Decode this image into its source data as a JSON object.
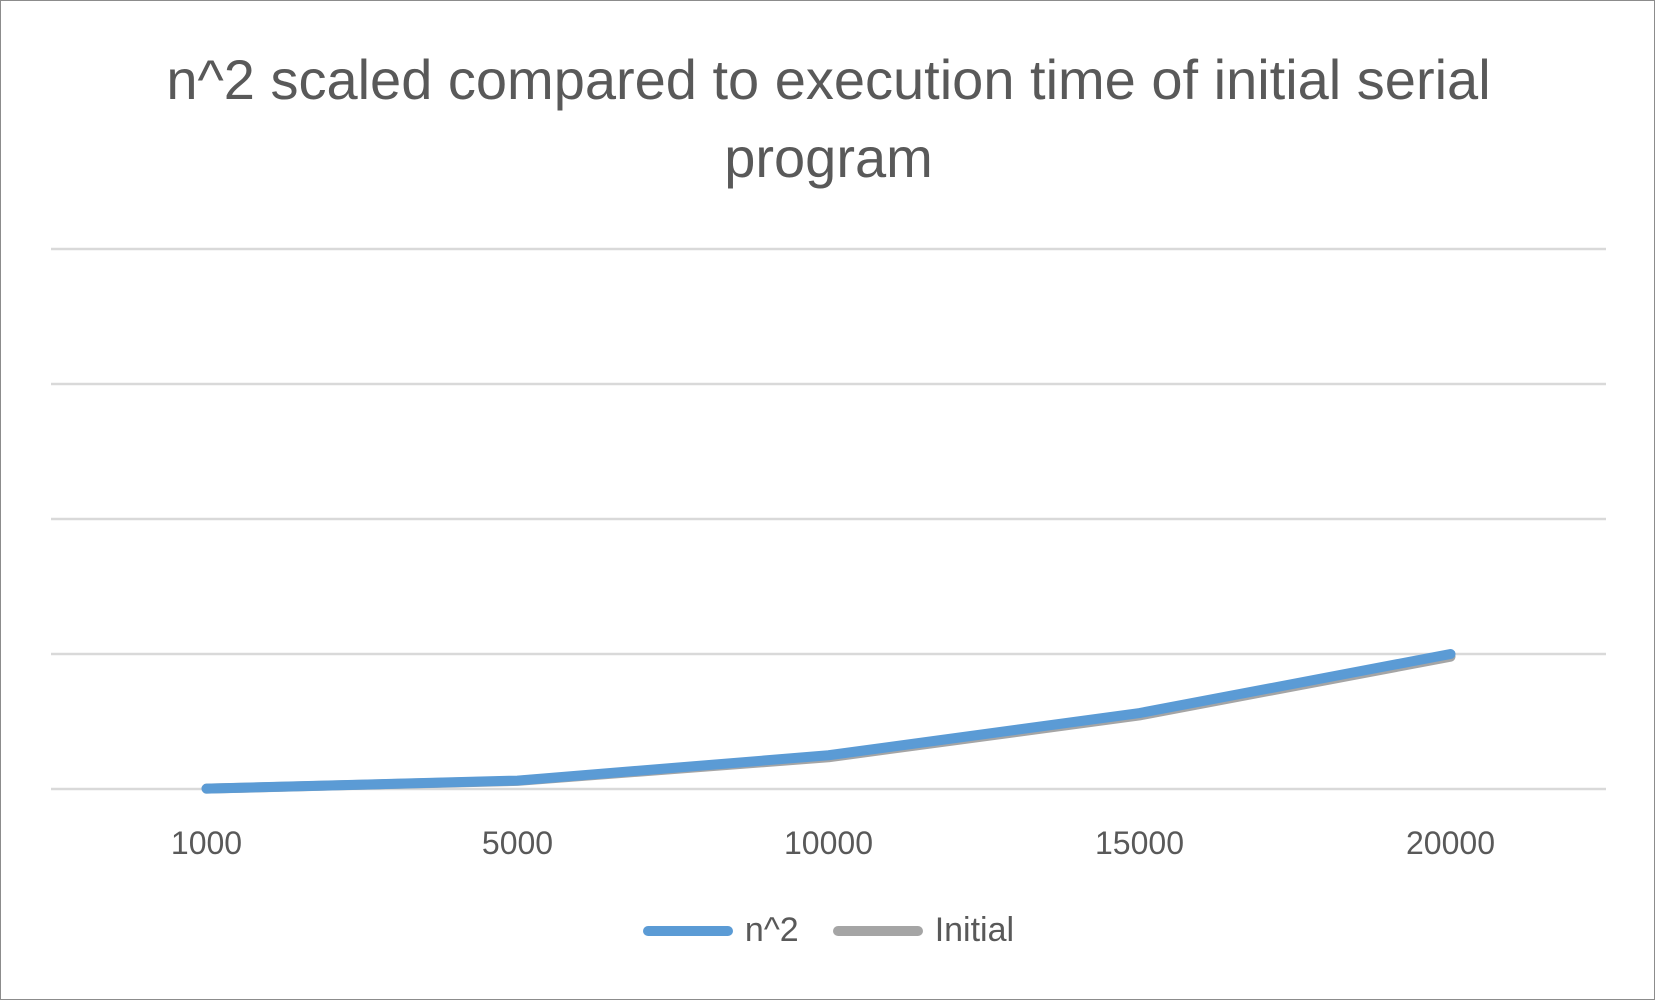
{
  "chart_data": {
    "type": "line",
    "title": "n^2 scaled compared to execution time of initial serial program",
    "xlabel": "",
    "ylabel": "",
    "categories": [
      "1000",
      "5000",
      "10000",
      "15000",
      "20000"
    ],
    "ylim": [
      0,
      4
    ],
    "grid": true,
    "legend": "bottom",
    "series": [
      {
        "name": "n^2",
        "color": "#5b9bd5",
        "values": [
          0.0025,
          0.0625,
          0.25,
          0.5625,
          1.0
        ]
      },
      {
        "name": "Initial",
        "color": "#a5a5a5",
        "values": [
          0.0025,
          0.06,
          0.235,
          0.545,
          0.98
        ]
      }
    ]
  }
}
